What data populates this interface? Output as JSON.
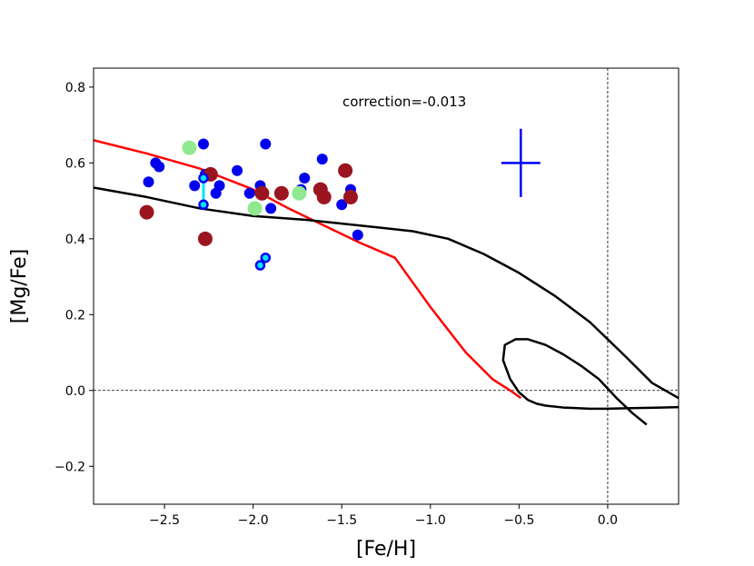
{
  "chart_data": {
    "type": "scatter",
    "title": "",
    "xlabel": "[Fe/H]",
    "ylabel": "[Mg/Fe]",
    "xlim": [
      -2.9,
      0.4
    ],
    "ylim": [
      -0.3,
      0.85
    ],
    "xticks": [
      -2.5,
      -2.0,
      -1.5,
      -1.0,
      -0.5,
      0.0
    ],
    "xtick_labels": [
      "−2.5",
      "−2.0",
      "−1.5",
      "−1.0",
      "−0.5",
      "0.0"
    ],
    "yticks": [
      -0.2,
      0.0,
      0.2,
      0.4,
      0.6,
      0.8
    ],
    "ytick_labels": [
      "−0.2",
      "0.0",
      "0.2",
      "0.4",
      "0.6",
      "0.8"
    ],
    "annotation": "correction=-0.013",
    "reference_lines": [
      {
        "orientation": "horizontal",
        "value": 0.0,
        "style": "dashed"
      },
      {
        "orientation": "vertical",
        "value": 0.0,
        "style": "dashed"
      }
    ],
    "error_bar": {
      "x": -0.49,
      "y": 0.6,
      "xerr": 0.11,
      "yerr": 0.09,
      "color": "#0000ff"
    },
    "series": [
      {
        "name": "blue points",
        "color": "#0000ee",
        "size": 6,
        "x": [
          -2.59,
          -2.55,
          -2.53,
          -2.28,
          -2.33,
          -2.27,
          -2.24,
          -2.21,
          -2.19,
          -2.09,
          -2.02,
          -1.96,
          -1.93,
          -1.9,
          -1.73,
          -1.71,
          -1.61,
          -1.5,
          -1.45,
          -1.41
        ],
        "y": [
          0.55,
          0.6,
          0.59,
          0.65,
          0.54,
          0.57,
          0.57,
          0.52,
          0.54,
          0.58,
          0.52,
          0.54,
          0.65,
          0.48,
          0.53,
          0.56,
          0.61,
          0.49,
          0.53,
          0.41
        ]
      },
      {
        "name": "dark red points",
        "color": "#9b1520",
        "size": 8,
        "x": [
          -2.6,
          -2.24,
          -2.27,
          -1.95,
          -1.84,
          -1.62,
          -1.6,
          -1.48,
          -1.45
        ],
        "y": [
          0.47,
          0.57,
          0.4,
          0.52,
          0.52,
          0.53,
          0.51,
          0.58,
          0.51
        ]
      },
      {
        "name": "light green points",
        "color": "#90e890",
        "size": 8,
        "x": [
          -2.36,
          -1.99,
          -1.74
        ],
        "y": [
          0.64,
          0.48,
          0.52
        ]
      },
      {
        "name": "cyan-linked pairs",
        "color": "#0000ee",
        "link_color": "#00e5ff",
        "pairs": [
          [
            [
              -2.28,
              0.56
            ],
            [
              -2.28,
              0.49
            ]
          ],
          [
            [
              -1.96,
              0.33
            ],
            [
              -1.93,
              0.35
            ]
          ]
        ]
      }
    ],
    "lines": [
      {
        "name": "red model",
        "color": "#ff0000",
        "x": [
          -2.9,
          -2.6,
          -2.3,
          -2.0,
          -1.8,
          -1.6,
          -1.4,
          -1.2,
          -1.0,
          -0.8,
          -0.65,
          -0.55,
          -0.49
        ],
        "y": [
          0.66,
          0.625,
          0.585,
          0.53,
          0.48,
          0.435,
          0.39,
          0.35,
          0.22,
          0.1,
          0.03,
          0.0,
          -0.02
        ]
      },
      {
        "name": "black model upper",
        "color": "#000000",
        "x": [
          -2.9,
          -2.6,
          -2.3,
          -2.0,
          -1.7,
          -1.5,
          -1.3,
          -1.1,
          -0.9,
          -0.7,
          -0.5,
          -0.3,
          -0.1,
          0.1,
          0.25,
          0.4
        ],
        "y": [
          0.535,
          0.51,
          0.48,
          0.46,
          0.45,
          0.44,
          0.43,
          0.42,
          0.4,
          0.36,
          0.31,
          0.25,
          0.18,
          0.09,
          0.02,
          -0.02
        ]
      },
      {
        "name": "black model loop",
        "color": "#000000",
        "x": [
          0.22,
          0.14,
          0.05,
          -0.05,
          -0.15,
          -0.25,
          -0.35,
          -0.45,
          -0.52,
          -0.58,
          -0.59,
          -0.55,
          -0.5,
          -0.45,
          -0.4,
          -0.35,
          -0.25,
          -0.1,
          0.0,
          0.1,
          0.2,
          0.3,
          0.4
        ],
        "y": [
          -0.09,
          -0.06,
          -0.02,
          0.03,
          0.065,
          0.095,
          0.12,
          0.135,
          0.135,
          0.12,
          0.08,
          0.03,
          -0.005,
          -0.025,
          -0.035,
          -0.04,
          -0.045,
          -0.048,
          -0.048,
          -0.047,
          -0.046,
          -0.045,
          -0.044
        ]
      }
    ]
  }
}
